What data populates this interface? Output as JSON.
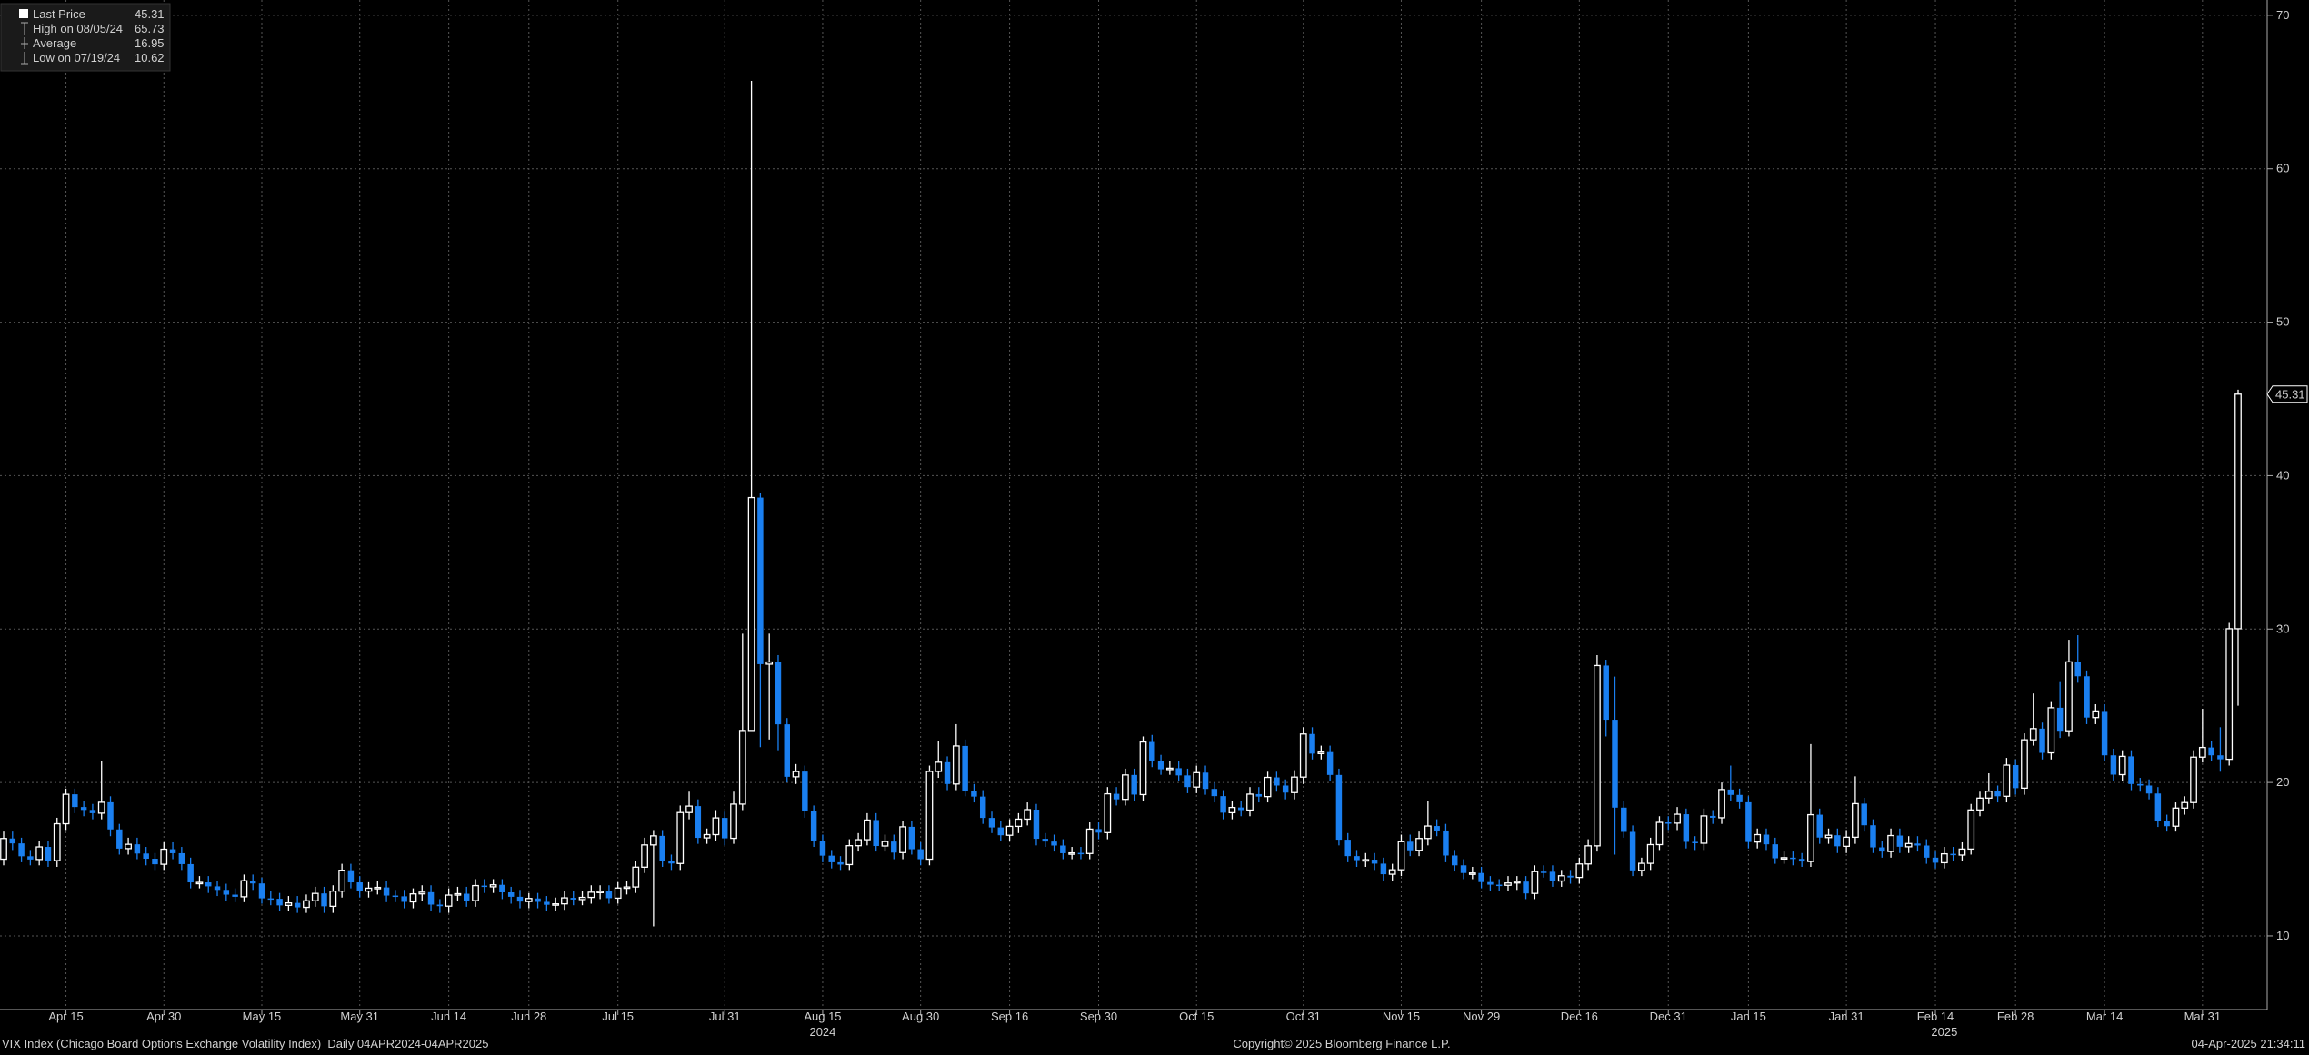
{
  "chart_data": {
    "type": "candlestick",
    "legend_stats": [
      {
        "label": "Last Price",
        "value": 45.31
      },
      {
        "label": "High on 08/05/24",
        "value": 65.73
      },
      {
        "label": "Average",
        "value": 16.95
      },
      {
        "label": "Low on 07/19/24",
        "value": 10.62
      }
    ],
    "x": [
      "04/04/24",
      "04/05/24",
      "04/08/24",
      "04/09/24",
      "04/10/24",
      "04/11/24",
      "04/12/24",
      "04/15/24",
      "04/16/24",
      "04/17/24",
      "04/18/24",
      "04/19/24",
      "04/22/24",
      "04/23/24",
      "04/24/24",
      "04/25/24",
      "04/26/24",
      "04/29/24",
      "04/30/24",
      "05/01/24",
      "05/02/24",
      "05/03/24",
      "05/06/24",
      "05/07/24",
      "05/08/24",
      "05/09/24",
      "05/10/24",
      "05/13/24",
      "05/14/24",
      "05/15/24",
      "05/16/24",
      "05/17/24",
      "05/20/24",
      "05/21/24",
      "05/22/24",
      "05/23/24",
      "05/24/24",
      "05/28/24",
      "05/29/24",
      "05/30/24",
      "05/31/24",
      "06/03/24",
      "06/04/24",
      "06/05/24",
      "06/06/24",
      "06/07/24",
      "06/10/24",
      "06/11/24",
      "06/12/24",
      "06/13/24",
      "06/14/24",
      "06/17/24",
      "06/18/24",
      "06/20/24",
      "06/21/24",
      "06/24/24",
      "06/25/24",
      "06/26/24",
      "06/27/24",
      "06/28/24",
      "07/01/24",
      "07/02/24",
      "07/03/24",
      "07/05/24",
      "07/08/24",
      "07/09/24",
      "07/10/24",
      "07/11/24",
      "07/12/24",
      "07/15/24",
      "07/16/24",
      "07/17/24",
      "07/18/24",
      "07/19/24",
      "07/22/24",
      "07/23/24",
      "07/24/24",
      "07/25/24",
      "07/26/24",
      "07/29/24",
      "07/30/24",
      "07/31/24",
      "08/01/24",
      "08/02/24",
      "08/05/24",
      "08/06/24",
      "08/07/24",
      "08/08/24",
      "08/09/24",
      "08/12/24",
      "08/13/24",
      "08/14/24",
      "08/15/24",
      "08/16/24",
      "08/19/24",
      "08/20/24",
      "08/21/24",
      "08/22/24",
      "08/23/24",
      "08/26/24",
      "08/27/24",
      "08/28/24",
      "08/29/24",
      "08/30/24",
      "09/03/24",
      "09/04/24",
      "09/05/24",
      "09/06/24",
      "09/09/24",
      "09/10/24",
      "09/11/24",
      "09/12/24",
      "09/13/24",
      "09/16/24",
      "09/17/24",
      "09/18/24",
      "09/19/24",
      "09/20/24",
      "09/23/24",
      "09/24/24",
      "09/25/24",
      "09/26/24",
      "09/27/24",
      "09/30/24",
      "10/01/24",
      "10/02/24",
      "10/03/24",
      "10/04/24",
      "10/07/24",
      "10/08/24",
      "10/09/24",
      "10/10/24",
      "10/11/24",
      "10/14/24",
      "10/15/24",
      "10/16/24",
      "10/17/24",
      "10/18/24",
      "10/21/24",
      "10/22/24",
      "10/23/24",
      "10/24/24",
      "10/25/24",
      "10/28/24",
      "10/29/24",
      "10/30/24",
      "10/31/24",
      "11/01/24",
      "11/04/24",
      "11/05/24",
      "11/06/24",
      "11/07/24",
      "11/08/24",
      "11/11/24",
      "11/12/24",
      "11/13/24",
      "11/14/24",
      "11/15/24",
      "11/18/24",
      "11/19/24",
      "11/20/24",
      "11/21/24",
      "11/22/24",
      "11/25/24",
      "11/26/24",
      "11/27/24",
      "11/29/24",
      "12/02/24",
      "12/03/24",
      "12/04/24",
      "12/05/24",
      "12/06/24",
      "12/09/24",
      "12/10/24",
      "12/11/24",
      "12/12/24",
      "12/13/24",
      "12/16/24",
      "12/17/24",
      "12/18/24",
      "12/19/24",
      "12/20/24",
      "12/23/24",
      "12/24/24",
      "12/26/24",
      "12/27/24",
      "12/30/24",
      "12/31/24",
      "01/02/25",
      "01/03/25",
      "01/06/25",
      "01/07/25",
      "01/08/25",
      "01/10/25",
      "01/13/25",
      "01/14/25",
      "01/15/25",
      "01/16/25",
      "01/17/25",
      "01/21/25",
      "01/22/25",
      "01/23/25",
      "01/24/25",
      "01/27/25",
      "01/28/25",
      "01/29/25",
      "01/30/25",
      "01/31/25",
      "02/03/25",
      "02/04/25",
      "02/05/25",
      "02/06/25",
      "02/07/25",
      "02/10/25",
      "02/11/25",
      "02/12/25",
      "02/13/25",
      "02/14/25",
      "02/18/25",
      "02/19/25",
      "02/20/25",
      "02/21/25",
      "02/24/25",
      "02/25/25",
      "02/26/25",
      "02/27/25",
      "02/28/25",
      "03/03/25",
      "03/04/25",
      "03/05/25",
      "03/06/25",
      "03/07/25",
      "03/10/25",
      "03/11/25",
      "03/12/25",
      "03/13/25",
      "03/14/25",
      "03/17/25",
      "03/18/25",
      "03/19/25",
      "03/20/25",
      "03/21/25",
      "03/24/25",
      "03/25/25",
      "03/26/25",
      "03/27/25",
      "03/28/25",
      "03/31/25",
      "04/01/25",
      "04/02/25",
      "04/03/25",
      "04/04/25"
    ],
    "open": [
      15.0,
      16.35,
      16.03,
      15.19,
      14.98,
      15.8,
      14.91,
      17.31,
      19.23,
      18.4,
      18.21,
      18.0,
      18.71,
      16.94,
      15.69,
      15.97,
      15.37,
      15.03,
      14.67,
      15.65,
      15.39,
      14.68,
      13.49,
      13.49,
      13.23,
      13.0,
      12.69,
      12.55,
      13.6,
      13.42,
      12.45,
      12.42,
      11.99,
      12.15,
      11.86,
      12.29,
      12.77,
      11.93,
      12.92,
      14.28,
      13.49,
      12.92,
      13.11,
      13.16,
      12.63,
      12.58,
      12.22,
      12.74,
      12.85,
      12.04,
      11.94,
      12.66,
      12.75,
      12.3,
      13.28,
      13.2,
      13.33,
      12.84,
      12.55,
      12.24,
      12.44,
      12.22,
      12.03,
      12.09,
      12.48,
      12.37,
      12.51,
      12.85,
      12.91,
      12.46,
      13.12,
      13.19,
      14.48,
      15.93,
      16.52,
      14.91,
      14.72,
      18.04,
      18.46,
      16.39,
      16.6,
      17.69,
      16.36,
      18.59,
      23.39,
      38.57,
      27.71,
      27.85,
      23.79,
      20.37,
      20.71,
      18.12,
      16.19,
      15.23,
      14.8,
      14.65,
      15.88,
      16.27,
      17.55,
      15.86,
      16.15,
      15.43,
      17.11,
      15.65,
      15.0,
      20.72,
      21.32,
      19.9,
      22.38,
      19.45,
      19.08,
      17.69,
      17.07,
      16.56,
      17.14,
      17.61,
      18.23,
      16.33,
      16.15,
      15.89,
      15.39,
      15.41,
      15.37,
      16.96,
      16.73,
      19.26,
      18.9,
      20.49,
      19.21,
      22.64,
      21.42,
      20.86,
      20.93,
      20.46,
      19.7,
      20.64,
      19.58,
      19.11,
      18.03,
      18.37,
      18.2,
      19.24,
      19.08,
      20.33,
      19.8,
      19.34,
      20.35,
      23.16,
      21.88,
      21.98,
      20.49,
      16.27,
      15.2,
      14.94,
      14.97,
      14.71,
      14.02,
      14.31,
      16.14,
      15.58,
      16.35,
      17.16,
      16.87,
      15.24,
      14.6,
      14.1,
      14.1,
      13.51,
      13.34,
      13.3,
      13.45,
      13.54,
      12.77,
      14.19,
      14.18,
      13.58,
      13.92,
      13.81,
      14.69,
      15.87,
      27.62,
      24.09,
      18.36,
      16.78,
      14.27,
      14.73,
      15.95,
      17.4,
      17.35,
      17.93,
      16.13,
      16.04,
      17.82,
      17.7,
      19.54,
      19.19,
      18.71,
      16.12,
      16.6,
      15.97,
      15.06,
      15.1,
      15.02,
      14.85,
      17.9,
      16.41,
      16.56,
      15.84,
      16.43,
      18.62,
      17.21,
      15.77,
      15.5,
      16.54,
      15.81,
      16.02,
      15.89,
      15.1,
      14.77,
      15.35,
      15.27,
      15.66,
      18.21,
      18.98,
      19.43,
      19.1,
      21.13,
      19.63,
      22.78,
      23.51,
      21.93,
      24.87,
      23.37,
      27.86,
      26.92,
      24.23,
      24.66,
      21.77,
      20.51,
      21.7,
      19.9,
      19.8,
      19.28,
      17.48,
      17.15,
      18.33,
      18.69,
      21.65,
      22.28,
      21.77,
      21.51,
      30.02
    ],
    "high": [
      16.8,
      16.8,
      16.4,
      15.6,
      16.2,
      16.2,
      17.7,
      19.6,
      19.6,
      18.8,
      18.6,
      21.4,
      19.1,
      17.3,
      16.4,
      16.4,
      15.8,
      15.4,
      16.1,
      16.1,
      15.8,
      15.1,
      13.9,
      13.9,
      13.6,
      13.4,
      13.1,
      14.0,
      14.0,
      13.8,
      12.9,
      12.8,
      12.6,
      12.6,
      12.7,
      13.2,
      13.2,
      13.3,
      14.7,
      14.7,
      13.9,
      13.5,
      13.6,
      13.6,
      13.0,
      13.0,
      13.1,
      13.3,
      13.3,
      12.4,
      13.1,
      13.2,
      13.2,
      13.7,
      13.7,
      13.7,
      13.7,
      13.2,
      13.0,
      12.8,
      12.8,
      12.6,
      12.5,
      12.9,
      12.9,
      12.9,
      13.3,
      13.3,
      13.3,
      13.5,
      13.6,
      14.9,
      16.4,
      16.9,
      16.9,
      15.3,
      18.5,
      19.4,
      18.9,
      17.0,
      18.2,
      18.1,
      19.4,
      29.7,
      65.73,
      38.9,
      29.7,
      28.3,
      24.2,
      21.2,
      21.1,
      18.5,
      16.6,
      15.6,
      15.2,
      16.3,
      16.7,
      18.0,
      18.0,
      16.6,
      16.6,
      17.5,
      17.5,
      16.1,
      21.1,
      22.7,
      21.7,
      23.8,
      22.8,
      19.9,
      19.5,
      18.1,
      17.5,
      17.6,
      18.0,
      18.7,
      18.6,
      16.7,
      16.6,
      16.3,
      15.8,
      15.8,
      17.4,
      17.4,
      19.7,
      19.7,
      20.9,
      20.9,
      23.0,
      23.1,
      21.8,
      21.4,
      21.4,
      20.9,
      21.1,
      21.1,
      20.0,
      19.5,
      18.8,
      18.8,
      19.7,
      19.7,
      20.7,
      20.7,
      20.2,
      20.8,
      23.6,
      23.6,
      22.4,
      22.4,
      20.9,
      16.7,
      15.6,
      15.4,
      15.4,
      15.1,
      14.7,
      16.6,
      16.6,
      16.8,
      18.8,
      17.6,
      17.3,
      15.6,
      15.0,
      14.5,
      14.5,
      13.9,
      13.7,
      13.9,
      13.9,
      13.9,
      14.6,
      14.6,
      14.6,
      14.3,
      14.3,
      15.1,
      16.3,
      28.3,
      28.0,
      26.9,
      18.8,
      17.2,
      15.1,
      16.4,
      17.8,
      17.8,
      18.4,
      18.3,
      16.5,
      18.3,
      18.2,
      20.0,
      21.1,
      19.6,
      19.1,
      17.0,
      17.0,
      16.4,
      15.5,
      15.5,
      15.4,
      22.5,
      18.3,
      17.0,
      17.0,
      16.9,
      20.4,
      19.0,
      17.6,
      16.2,
      17.0,
      17.0,
      16.5,
      16.5,
      16.3,
      15.5,
      15.8,
      15.8,
      16.1,
      18.6,
      19.4,
      20.6,
      19.8,
      21.6,
      21.5,
      23.2,
      25.8,
      23.9,
      25.3,
      26.6,
      29.3,
      29.6,
      27.3,
      25.1,
      25.1,
      22.2,
      22.1,
      22.1,
      20.3,
      20.2,
      19.7,
      17.9,
      18.7,
      19.1,
      22.1,
      24.8,
      22.7,
      23.6,
      30.4,
      45.6
    ],
    "low": [
      14.6,
      15.6,
      14.8,
      14.6,
      14.6,
      14.5,
      14.5,
      16.9,
      18.0,
      17.8,
      17.6,
      17.6,
      16.5,
      15.3,
      15.3,
      15.0,
      14.6,
      14.3,
      14.3,
      15.0,
      14.3,
      13.1,
      13.1,
      12.8,
      12.6,
      12.3,
      12.2,
      12.2,
      13.0,
      12.1,
      12.0,
      11.6,
      11.6,
      11.5,
      11.5,
      11.9,
      11.5,
      11.5,
      12.5,
      13.1,
      12.5,
      12.5,
      12.7,
      12.2,
      12.2,
      11.8,
      11.8,
      12.3,
      11.6,
      11.5,
      11.5,
      12.3,
      11.9,
      11.9,
      12.8,
      12.8,
      12.4,
      12.1,
      11.8,
      11.8,
      11.8,
      11.6,
      11.6,
      11.7,
      12.0,
      12.0,
      12.1,
      12.4,
      12.1,
      12.1,
      12.7,
      12.8,
      14.1,
      10.62,
      14.5,
      14.3,
      14.3,
      17.6,
      16.0,
      16.0,
      16.2,
      15.9,
      16.0,
      18.2,
      23.39,
      22.3,
      22.8,
      22.1,
      20.0,
      19.9,
      17.7,
      15.8,
      14.8,
      14.4,
      14.3,
      14.3,
      15.5,
      15.9,
      15.5,
      15.5,
      15.0,
      15.0,
      15.3,
      14.6,
      14.6,
      20.3,
      19.5,
      19.5,
      19.1,
      18.7,
      17.3,
      16.7,
      16.2,
      16.2,
      16.7,
      17.2,
      15.9,
      15.8,
      15.5,
      15.0,
      15.0,
      15.0,
      15.0,
      16.3,
      16.3,
      18.5,
      18.5,
      18.8,
      18.8,
      21.0,
      20.5,
      20.5,
      20.1,
      19.3,
      19.3,
      19.2,
      18.7,
      17.6,
      17.6,
      17.8,
      17.8,
      18.7,
      18.7,
      19.4,
      18.9,
      18.9,
      19.9,
      21.5,
      21.5,
      20.1,
      15.9,
      14.8,
      14.5,
      14.5,
      14.3,
      13.6,
      13.6,
      13.9,
      15.2,
      15.2,
      15.9,
      16.5,
      14.8,
      14.2,
      13.7,
      13.7,
      13.1,
      12.9,
      12.9,
      12.9,
      13.0,
      12.4,
      12.4,
      13.8,
      13.2,
      13.2,
      13.4,
      13.4,
      14.3,
      15.5,
      23.0,
      15.3,
      16.4,
      13.9,
      13.9,
      14.3,
      15.6,
      16.9,
      16.9,
      15.7,
      15.6,
      15.6,
      17.3,
      17.3,
      18.8,
      18.3,
      15.7,
      15.7,
      15.6,
      14.7,
      14.7,
      14.6,
      14.5,
      14.5,
      16.0,
      16.0,
      15.4,
      15.4,
      16.0,
      16.8,
      15.4,
      15.1,
      15.1,
      15.4,
      15.4,
      15.5,
      14.7,
      14.4,
      14.4,
      14.9,
      14.9,
      15.3,
      17.8,
      18.6,
      18.7,
      18.7,
      19.2,
      19.2,
      22.4,
      21.5,
      21.5,
      22.9,
      23.0,
      26.5,
      23.8,
      23.8,
      21.4,
      20.1,
      20.1,
      19.5,
      19.4,
      18.9,
      17.1,
      16.8,
      16.8,
      17.9,
      18.3,
      21.3,
      21.4,
      20.7,
      21.1,
      25.0
    ],
    "close": [
      16.35,
      16.03,
      15.19,
      14.98,
      15.8,
      14.91,
      17.31,
      19.23,
      18.4,
      18.21,
      18.0,
      18.71,
      16.94,
      15.69,
      15.97,
      15.37,
      15.03,
      14.67,
      15.65,
      15.39,
      14.68,
      13.49,
      13.49,
      13.23,
      13.0,
      12.69,
      12.55,
      13.6,
      13.42,
      12.45,
      12.42,
      11.99,
      12.15,
      11.86,
      12.29,
      12.77,
      11.93,
      12.92,
      14.28,
      13.49,
      12.92,
      13.11,
      13.16,
      12.63,
      12.58,
      12.22,
      12.74,
      12.85,
      12.04,
      11.94,
      12.66,
      12.75,
      12.3,
      13.28,
      13.2,
      13.33,
      12.84,
      12.55,
      12.24,
      12.44,
      12.22,
      12.03,
      12.09,
      12.48,
      12.37,
      12.51,
      12.85,
      12.91,
      12.46,
      13.12,
      13.19,
      14.48,
      15.93,
      16.52,
      14.91,
      14.72,
      18.04,
      18.46,
      16.39,
      16.6,
      17.69,
      16.36,
      18.59,
      23.39,
      38.57,
      27.71,
      27.85,
      23.79,
      20.37,
      20.71,
      18.12,
      16.19,
      15.23,
      14.8,
      14.65,
      15.88,
      16.27,
      17.55,
      15.86,
      16.15,
      15.43,
      17.11,
      15.65,
      15.0,
      20.72,
      21.32,
      19.9,
      22.38,
      19.45,
      19.08,
      17.69,
      17.07,
      16.56,
      17.14,
      17.61,
      18.23,
      16.33,
      16.15,
      15.89,
      15.39,
      15.41,
      15.37,
      16.96,
      16.73,
      19.26,
      18.9,
      20.49,
      19.21,
      22.64,
      21.42,
      20.86,
      20.93,
      20.46,
      19.7,
      20.64,
      19.58,
      19.11,
      18.03,
      18.37,
      18.2,
      19.24,
      19.08,
      20.33,
      19.8,
      19.34,
      20.35,
      23.16,
      21.88,
      21.98,
      20.49,
      16.27,
      15.2,
      14.94,
      14.97,
      14.71,
      14.02,
      14.31,
      16.14,
      15.58,
      16.35,
      17.16,
      16.87,
      15.24,
      14.6,
      14.1,
      14.1,
      13.51,
      13.34,
      13.3,
      13.45,
      13.54,
      12.77,
      14.19,
      14.18,
      13.58,
      13.92,
      13.81,
      14.69,
      15.87,
      27.62,
      24.09,
      18.36,
      16.78,
      14.27,
      14.73,
      15.95,
      17.4,
      17.35,
      17.93,
      16.13,
      16.04,
      17.82,
      17.7,
      19.54,
      19.19,
      18.71,
      16.12,
      16.6,
      15.97,
      15.06,
      15.1,
      15.02,
      14.85,
      17.9,
      16.41,
      16.56,
      15.84,
      16.43,
      18.62,
      17.21,
      15.77,
      15.5,
      16.54,
      15.81,
      16.02,
      15.89,
      15.1,
      14.77,
      15.35,
      15.27,
      15.66,
      18.21,
      18.98,
      19.43,
      19.1,
      21.13,
      19.63,
      22.78,
      23.51,
      21.93,
      24.87,
      23.37,
      27.86,
      26.92,
      24.23,
      24.66,
      21.77,
      20.51,
      21.7,
      19.9,
      19.8,
      19.28,
      17.48,
      17.15,
      18.33,
      18.69,
      21.65,
      22.28,
      21.77,
      21.51,
      30.02,
      45.31
    ],
    "up_color": "#ffffff",
    "down_color": "#1a7ff0",
    "ylim": [
      5.2,
      71
    ],
    "yticks": [
      10,
      20,
      30,
      40,
      50,
      60,
      70
    ],
    "grid": true,
    "xticks": [
      {
        "value": "04/15/24",
        "label": "Apr 15"
      },
      {
        "value": "04/30/24",
        "label": "Apr 30"
      },
      {
        "value": "05/15/24",
        "label": "May 15"
      },
      {
        "value": "05/31/24",
        "label": "May 31"
      },
      {
        "value": "06/14/24",
        "label": "Jun 14"
      },
      {
        "value": "06/28/24",
        "label": "Jun 28"
      },
      {
        "value": "07/15/24",
        "label": "Jul 15"
      },
      {
        "value": "07/31/24",
        "label": "Jul 31"
      },
      {
        "value": "08/15/24",
        "label": "Aug 15"
      },
      {
        "value": "08/30/24",
        "label": "Aug 30"
      },
      {
        "value": "09/16/24",
        "label": "Sep 16"
      },
      {
        "value": "09/30/24",
        "label": "Sep 30"
      },
      {
        "value": "10/15/24",
        "label": "Oct 15"
      },
      {
        "value": "10/31/24",
        "label": "Oct 31"
      },
      {
        "value": "11/15/24",
        "label": "Nov 15"
      },
      {
        "value": "11/29/24",
        "label": "Nov 29"
      },
      {
        "value": "12/16/24",
        "label": "Dec 16"
      },
      {
        "value": "12/31/24",
        "label": "Dec 31"
      },
      {
        "value": "01/15/25",
        "label": "Jan 15"
      },
      {
        "value": "01/31/25",
        "label": "Jan 31"
      },
      {
        "value": "02/14/25",
        "label": "Feb 14"
      },
      {
        "value": "02/28/25",
        "label": "Feb 28"
      },
      {
        "value": "03/14/25",
        "label": "Mar 14"
      },
      {
        "value": "03/31/25",
        "label": "Mar 31"
      }
    ],
    "year_labels": [
      {
        "value": "08/15/24",
        "label": "2024"
      },
      {
        "value": "02/18/25",
        "label": "2025"
      }
    ],
    "footer": {
      "left": "VIX Index (Chicago Board Options Exchange Volatility Index)  Daily 04APR2024-04APR2025",
      "center": "Copyright© 2025 Bloomberg Finance L.P.",
      "right": "04-Apr-2025 21:34:11"
    }
  }
}
